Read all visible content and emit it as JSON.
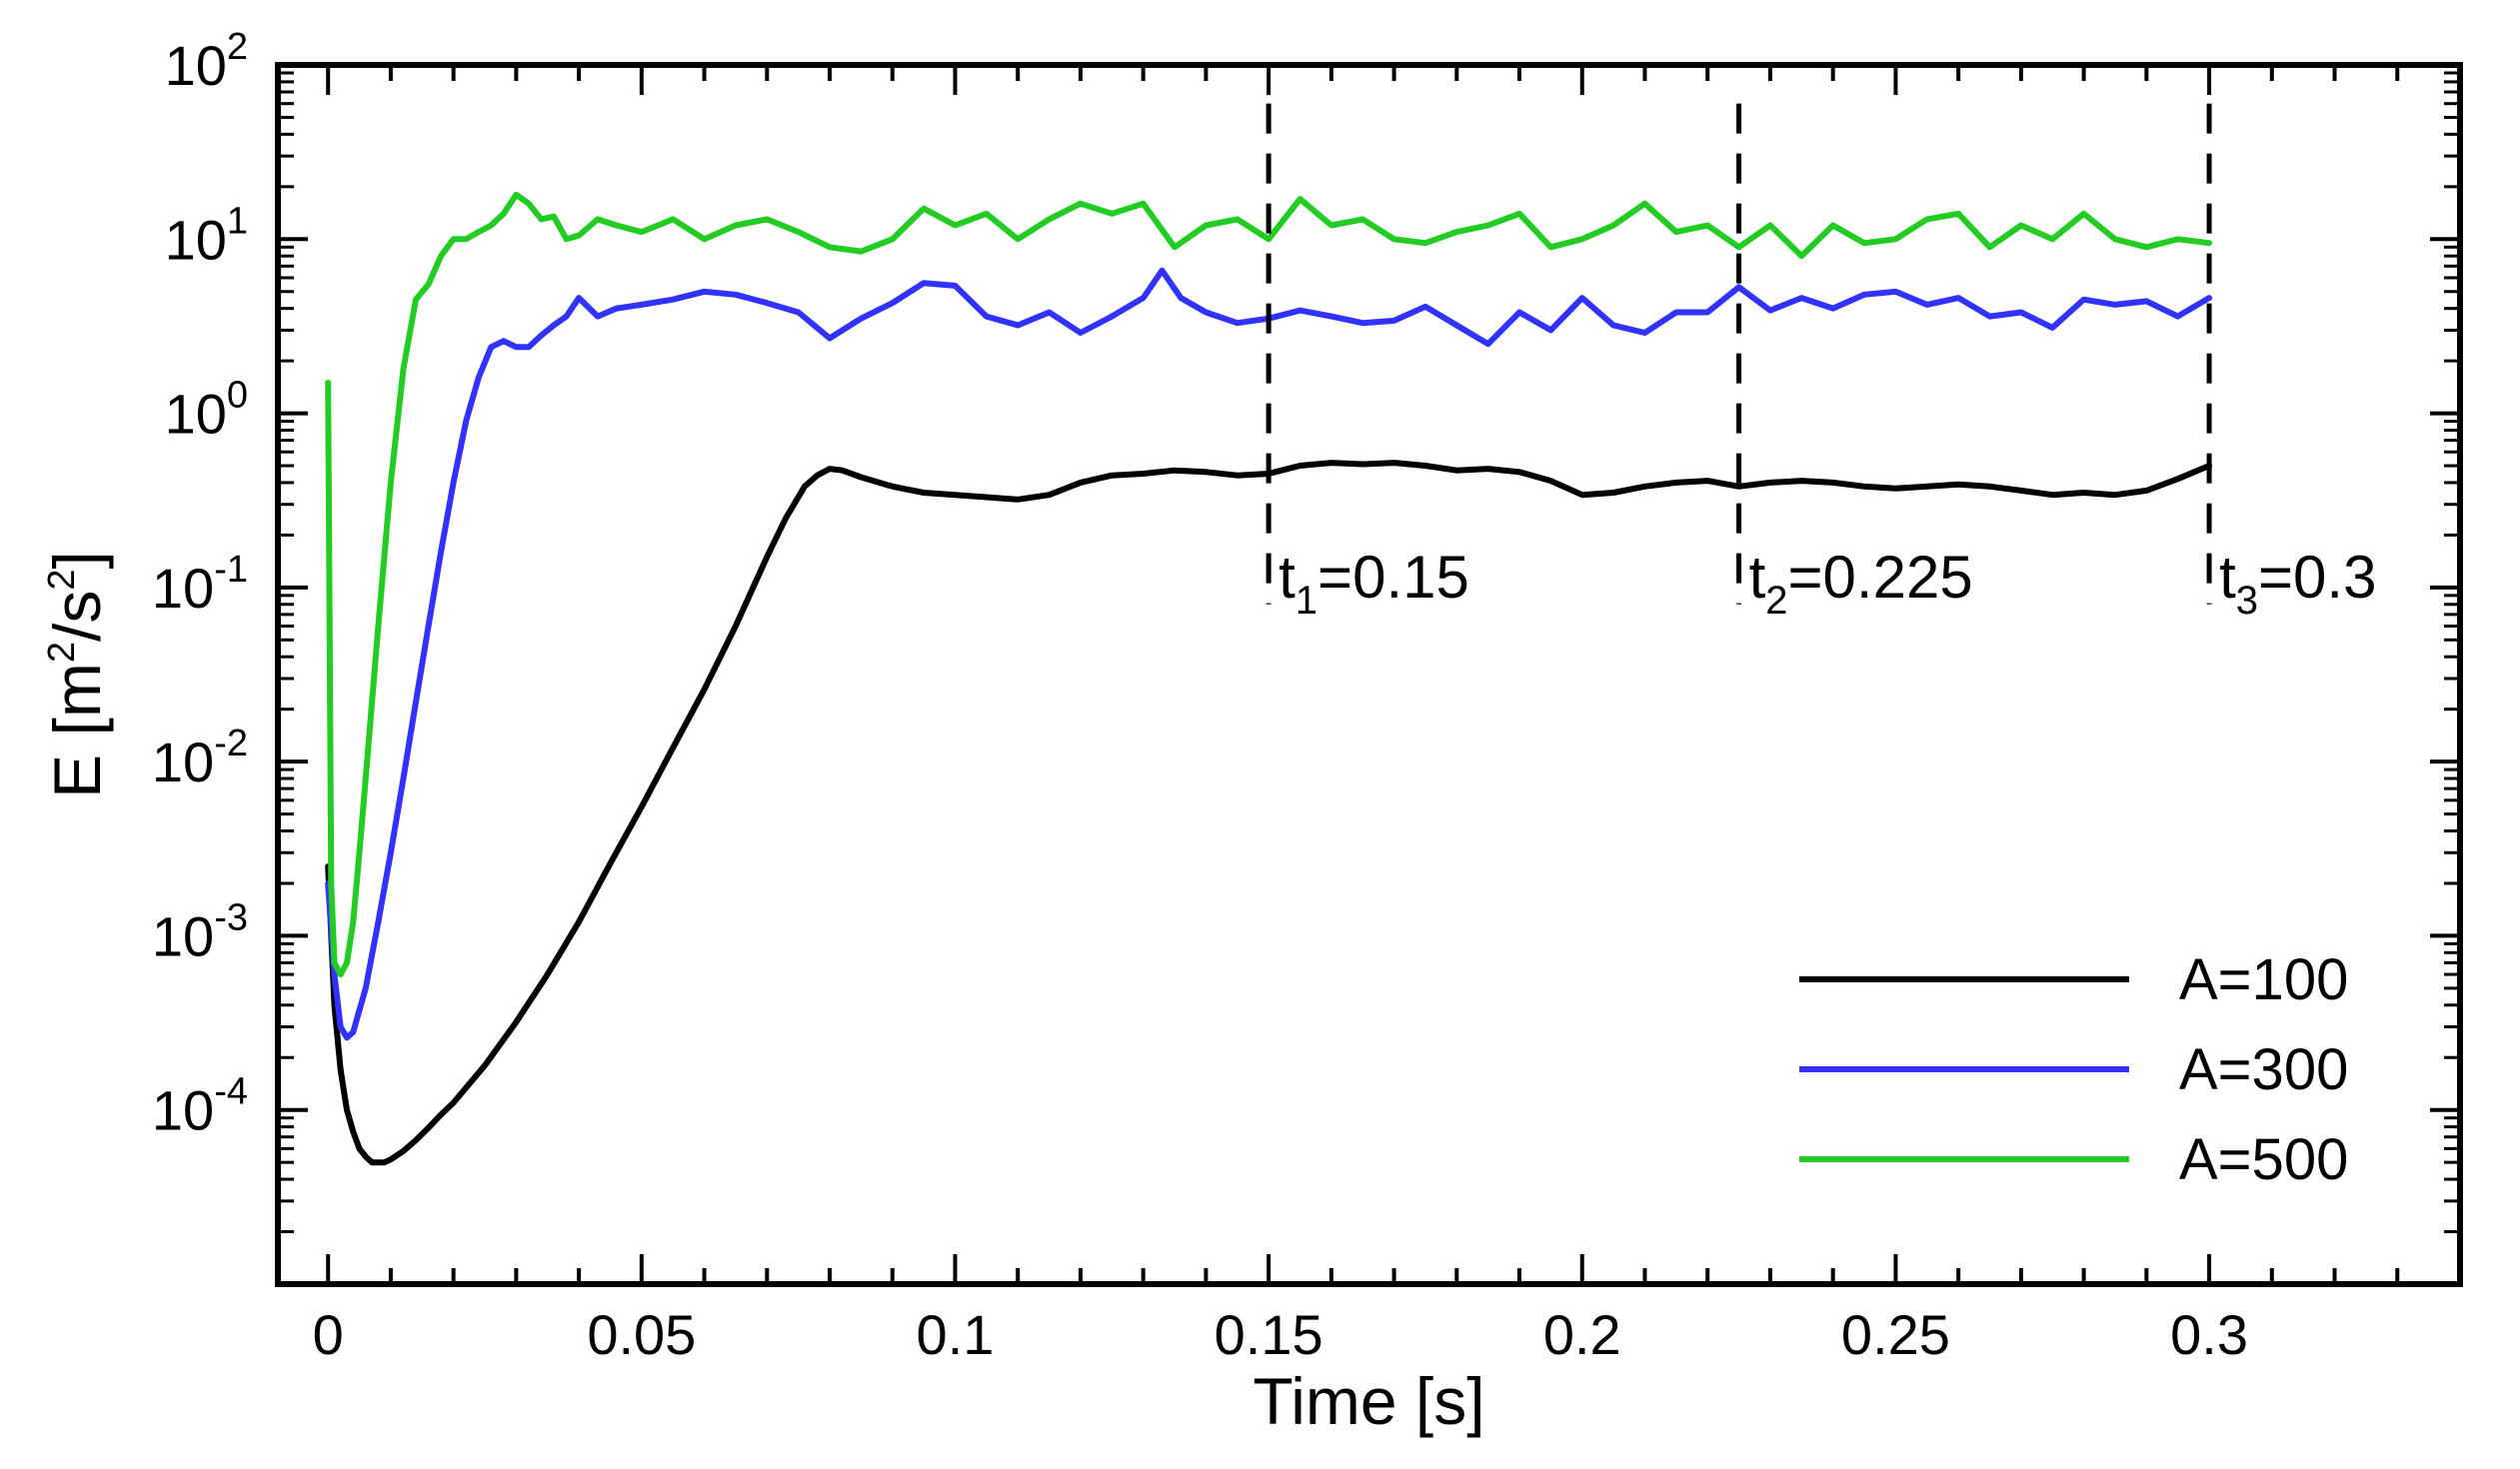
{
  "chart_data": {
    "type": "line",
    "xlabel": "Time [s]",
    "ylabel": {
      "base": "E [m",
      "exp1": "2",
      "mid": "/s",
      "exp2": "2",
      "end": "]"
    },
    "xscale": "linear",
    "yscale": "log",
    "xlim": [
      -0.008,
      0.34
    ],
    "ylim": [
      1e-05,
      100
    ],
    "x_ticks": [
      0,
      0.05,
      0.1,
      0.15,
      0.2,
      0.25,
      0.3
    ],
    "x_tick_labels": [
      "0",
      "0.05",
      "0.1",
      "0.15",
      "0.2",
      "0.25",
      "0.3"
    ],
    "y_ticks": [
      {
        "value": 100,
        "base": "10",
        "exp": "2"
      },
      {
        "value": 10,
        "base": "10",
        "exp": "1"
      },
      {
        "value": 1,
        "base": "10",
        "exp": "0"
      },
      {
        "value": 0.1,
        "base": "10",
        "exp": "-1"
      },
      {
        "value": 0.01,
        "base": "10",
        "exp": "-2"
      },
      {
        "value": 0.001,
        "base": "10",
        "exp": "-3"
      },
      {
        "value": 0.0001,
        "base": "10",
        "exp": "-4"
      }
    ],
    "grid": false,
    "legend_position": "bottom-right",
    "series": [
      {
        "name": "A=100",
        "color": "#000000",
        "x": [
          0,
          0.001,
          0.002,
          0.003,
          0.004,
          0.005,
          0.006,
          0.007,
          0.008,
          0.009,
          0.01,
          0.012,
          0.014,
          0.016,
          0.018,
          0.02,
          0.025,
          0.03,
          0.035,
          0.04,
          0.045,
          0.05,
          0.055,
          0.06,
          0.065,
          0.07,
          0.073,
          0.076,
          0.078,
          0.08,
          0.082,
          0.085,
          0.09,
          0.095,
          0.1,
          0.105,
          0.11,
          0.115,
          0.12,
          0.125,
          0.13,
          0.135,
          0.14,
          0.145,
          0.15,
          0.155,
          0.16,
          0.165,
          0.17,
          0.175,
          0.18,
          0.185,
          0.19,
          0.195,
          0.2,
          0.205,
          0.21,
          0.215,
          0.22,
          0.225,
          0.23,
          0.235,
          0.24,
          0.245,
          0.25,
          0.255,
          0.26,
          0.265,
          0.27,
          0.275,
          0.28,
          0.285,
          0.29,
          0.295,
          0.3
        ],
        "y": [
          0.0025,
          0.0004,
          0.00017,
          0.0001,
          7.5e-05,
          6e-05,
          5.4e-05,
          5e-05,
          5e-05,
          5e-05,
          5.2e-05,
          5.8e-05,
          6.7e-05,
          7.9e-05,
          9.4e-05,
          0.00011,
          0.00018,
          0.00032,
          0.0006,
          0.0012,
          0.0026,
          0.0055,
          0.012,
          0.026,
          0.06,
          0.15,
          0.25,
          0.38,
          0.44,
          0.48,
          0.47,
          0.43,
          0.38,
          0.35,
          0.34,
          0.33,
          0.32,
          0.34,
          0.4,
          0.44,
          0.45,
          0.47,
          0.46,
          0.44,
          0.45,
          0.5,
          0.52,
          0.51,
          0.52,
          0.5,
          0.47,
          0.48,
          0.46,
          0.41,
          0.34,
          0.35,
          0.38,
          0.4,
          0.41,
          0.38,
          0.4,
          0.41,
          0.4,
          0.38,
          0.37,
          0.38,
          0.39,
          0.38,
          0.36,
          0.34,
          0.35,
          0.34,
          0.36,
          0.42,
          0.5
        ]
      },
      {
        "name": "A=300",
        "color": "#3232ff",
        "x": [
          0,
          0.001,
          0.002,
          0.003,
          0.004,
          0.006,
          0.008,
          0.01,
          0.012,
          0.014,
          0.016,
          0.018,
          0.02,
          0.022,
          0.024,
          0.026,
          0.028,
          0.03,
          0.032,
          0.034,
          0.036,
          0.038,
          0.04,
          0.043,
          0.046,
          0.05,
          0.055,
          0.06,
          0.065,
          0.07,
          0.075,
          0.08,
          0.085,
          0.09,
          0.095,
          0.1,
          0.105,
          0.11,
          0.115,
          0.12,
          0.125,
          0.13,
          0.133,
          0.136,
          0.14,
          0.145,
          0.15,
          0.155,
          0.16,
          0.165,
          0.17,
          0.175,
          0.18,
          0.185,
          0.19,
          0.195,
          0.2,
          0.205,
          0.21,
          0.215,
          0.22,
          0.225,
          0.23,
          0.235,
          0.24,
          0.245,
          0.25,
          0.255,
          0.26,
          0.265,
          0.27,
          0.275,
          0.28,
          0.285,
          0.29,
          0.295,
          0.3
        ],
        "y": [
          0.002,
          0.0006,
          0.0003,
          0.00026,
          0.00028,
          0.0005,
          0.0012,
          0.003,
          0.008,
          0.022,
          0.06,
          0.16,
          0.4,
          0.9,
          1.6,
          2.4,
          2.6,
          2.4,
          2.4,
          2.8,
          3.2,
          3.6,
          4.6,
          3.6,
          4.0,
          4.2,
          4.5,
          5.0,
          4.8,
          4.3,
          3.8,
          2.7,
          3.5,
          4.3,
          5.6,
          5.4,
          3.6,
          3.2,
          3.8,
          2.9,
          3.6,
          4.6,
          6.6,
          4.6,
          3.8,
          3.3,
          3.5,
          3.9,
          3.6,
          3.3,
          3.4,
          4.1,
          3.2,
          2.5,
          3.8,
          3.0,
          4.6,
          3.2,
          2.9,
          3.8,
          3.8,
          5.3,
          3.9,
          4.6,
          4.0,
          4.8,
          5.0,
          4.2,
          4.6,
          3.6,
          3.8,
          3.1,
          4.5,
          4.2,
          4.4,
          3.6,
          4.6
        ]
      },
      {
        "name": "A=500",
        "color": "#22cc22",
        "x": [
          0,
          0.0005,
          0.001,
          0.002,
          0.003,
          0.004,
          0.005,
          0.006,
          0.008,
          0.01,
          0.012,
          0.014,
          0.016,
          0.018,
          0.02,
          0.022,
          0.024,
          0.026,
          0.028,
          0.03,
          0.032,
          0.034,
          0.036,
          0.038,
          0.04,
          0.043,
          0.046,
          0.05,
          0.055,
          0.06,
          0.065,
          0.07,
          0.075,
          0.08,
          0.085,
          0.09,
          0.095,
          0.1,
          0.105,
          0.11,
          0.115,
          0.12,
          0.125,
          0.13,
          0.135,
          0.14,
          0.145,
          0.15,
          0.155,
          0.16,
          0.165,
          0.17,
          0.175,
          0.18,
          0.185,
          0.19,
          0.195,
          0.2,
          0.205,
          0.21,
          0.215,
          0.22,
          0.225,
          0.23,
          0.235,
          0.24,
          0.245,
          0.25,
          0.255,
          0.26,
          0.265,
          0.27,
          0.275,
          0.28,
          0.285,
          0.29,
          0.295,
          0.3
        ],
        "y": [
          1.5,
          0.002,
          0.0007,
          0.0006,
          0.0007,
          0.0012,
          0.003,
          0.008,
          0.06,
          0.4,
          1.8,
          4.5,
          5.5,
          8.0,
          10.0,
          10.0,
          11.0,
          12.0,
          14.0,
          18.0,
          16.0,
          13.0,
          13.5,
          10.0,
          10.5,
          13.0,
          12.0,
          11.0,
          13.0,
          10.0,
          12.0,
          13.0,
          11.0,
          9.0,
          8.5,
          10.0,
          15.0,
          12.0,
          14.0,
          10.0,
          13.0,
          16.0,
          14.0,
          16.0,
          9.0,
          12.0,
          13.0,
          10.0,
          17.0,
          12.0,
          13.0,
          10.0,
          9.5,
          11.0,
          12.0,
          14.0,
          9.0,
          10.0,
          12.0,
          16.0,
          11.0,
          12.0,
          9.0,
          12.0,
          8.0,
          12.0,
          9.5,
          10.0,
          13.0,
          14.0,
          9.0,
          12.0,
          10.0,
          14.0,
          10.0,
          9.0,
          10.0,
          9.5
        ]
      }
    ],
    "markers": [
      {
        "x": 0.15,
        "y_from": 0.08,
        "y_to": 60,
        "label_base": "t",
        "label_sub": "1",
        "label_rest": "=0.15"
      },
      {
        "x": 0.225,
        "y_from": 0.08,
        "y_to": 60,
        "label_base": "t",
        "label_sub": "2",
        "label_rest": "=0.225"
      },
      {
        "x": 0.3,
        "y_from": 0.08,
        "y_to": 60,
        "label_base": "t",
        "label_sub": "3",
        "label_rest": "=0.3"
      }
    ]
  }
}
